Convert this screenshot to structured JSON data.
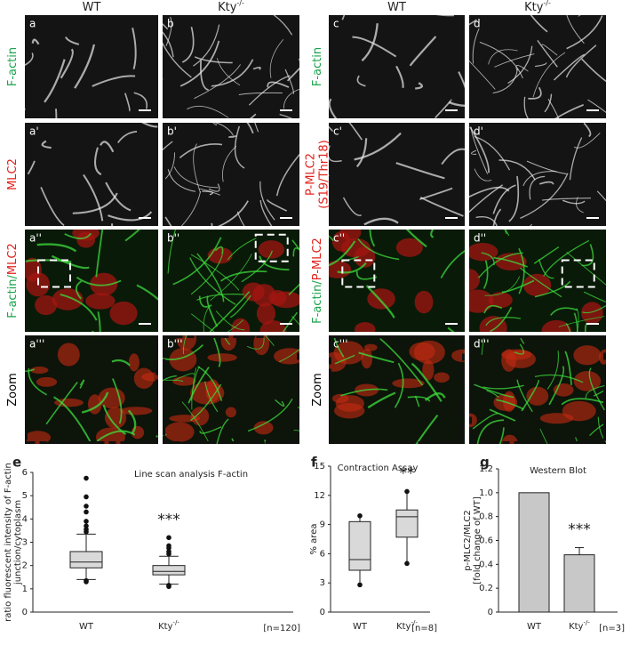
{
  "figure": {
    "columns": [
      {
        "label": "WT"
      },
      {
        "label": "Kty",
        "sup": "-/-"
      },
      {
        "label": "WT"
      },
      {
        "label": "Kty",
        "sup": "-/-"
      }
    ],
    "row_labels_left": [
      [
        {
          "text": "F-actin",
          "color": "#1aa34a"
        }
      ],
      [
        {
          "text": "MLC2",
          "color": "#e0201b"
        }
      ],
      [
        {
          "text": "F-actin/",
          "color": "#1aa34a"
        },
        {
          "text": "MLC2",
          "color": "#e0201b"
        }
      ],
      [
        {
          "text": "Zoom",
          "color": "#000000"
        }
      ]
    ],
    "row_labels_right": [
      [
        {
          "text": "F-actin",
          "color": "#1aa34a"
        }
      ],
      [
        {
          "text": "P-MLC2",
          "color": "#e0201b"
        },
        {
          "text": "(S19/Thr18)",
          "color": "#e0201b"
        }
      ],
      [
        {
          "text": "F-actin/",
          "color": "#1aa34a"
        },
        {
          "text": "P-MLC2",
          "color": "#e0201b"
        }
      ],
      [
        {
          "text": "Zoom",
          "color": "#000000"
        }
      ]
    ],
    "panel_letters": [
      [
        "a",
        "b",
        "c",
        "d"
      ],
      [
        "a'",
        "b'",
        "c'",
        "d'"
      ],
      [
        "a''",
        "b''",
        "c''",
        "d''"
      ],
      [
        "a'''",
        "b'''",
        "c'''",
        "d'''"
      ]
    ]
  },
  "chart_data": [
    {
      "type": "box",
      "panel_label": "e",
      "title": "Line scan analysis F-actin",
      "ylabel": [
        "ratio fluorescent intensity of F-actin",
        "junction/cytoplasm"
      ],
      "categories": [
        "WT",
        "Kty"
      ],
      "category_superscripts": [
        null,
        "-/-"
      ],
      "series": [
        {
          "whisker_low": 1.4,
          "q1": 1.9,
          "median": 2.15,
          "q3": 2.6,
          "whisker_high": 3.35,
          "outliers": [
            5.75,
            4.95,
            4.55,
            4.3,
            3.9,
            3.7,
            3.55,
            3.45,
            1.35,
            1.3
          ]
        },
        {
          "whisker_low": 1.2,
          "q1": 1.6,
          "median": 1.75,
          "q3": 2.0,
          "whisker_high": 2.4,
          "outliers": [
            3.2,
            2.85,
            2.75,
            2.6,
            2.5,
            1.15,
            1.1
          ]
        }
      ],
      "whisker_end": "cap",
      "color": "#d9d9d9",
      "annotations": [
        {
          "text": "***",
          "category": 1
        }
      ],
      "note": "[n=120]",
      "ylim": [
        0,
        6
      ],
      "yticks": [
        0,
        1,
        2,
        3,
        4,
        5,
        6
      ]
    },
    {
      "type": "box",
      "panel_label": "f",
      "title": "Contraction Assay",
      "ylabel": [
        "% area"
      ],
      "categories": [
        "WT",
        "Kty"
      ],
      "category_superscripts": [
        null,
        "-/-"
      ],
      "series": [
        {
          "whisker_low": 2.8,
          "q1": 4.3,
          "median": 5.4,
          "q3": 9.3,
          "whisker_high": 9.9,
          "outliers": []
        },
        {
          "whisker_low": 5.0,
          "q1": 7.7,
          "median": 9.8,
          "q3": 10.5,
          "whisker_high": 12.4,
          "outliers": []
        }
      ],
      "whisker_end": "dot",
      "color": "#d9d9d9",
      "annotations": [
        {
          "text": "**",
          "category": 1
        }
      ],
      "note": "[n=8]",
      "ylim": [
        0,
        15
      ],
      "yticks": [
        0,
        3,
        6,
        9,
        12,
        15
      ]
    },
    {
      "type": "bar",
      "panel_label": "g",
      "title": "Western Blot",
      "ylabel": [
        "p-MLC2/MLC2",
        "[fold change of WT]"
      ],
      "categories": [
        "WT",
        "Kty"
      ],
      "category_superscripts": [
        null,
        "-/-"
      ],
      "values": [
        1,
        0.48
      ],
      "errors": [
        null,
        0.06
      ],
      "color": "#c8c8c8",
      "annotations": [
        {
          "text": "***",
          "category": 1
        }
      ],
      "note": "[n=3]",
      "ylim": [
        0,
        1.2
      ],
      "yticks": [
        0,
        {
          "value": 0.2,
          "label": "0.2"
        },
        {
          "value": 0.4,
          "label": "0.4"
        },
        {
          "value": 0.6,
          "label": "0.6"
        },
        {
          "value": 0.8,
          "label": "0.8"
        },
        {
          "value": 1,
          "label": "1.0"
        },
        {
          "value": 1.2,
          "label": "1.2"
        }
      ]
    }
  ]
}
